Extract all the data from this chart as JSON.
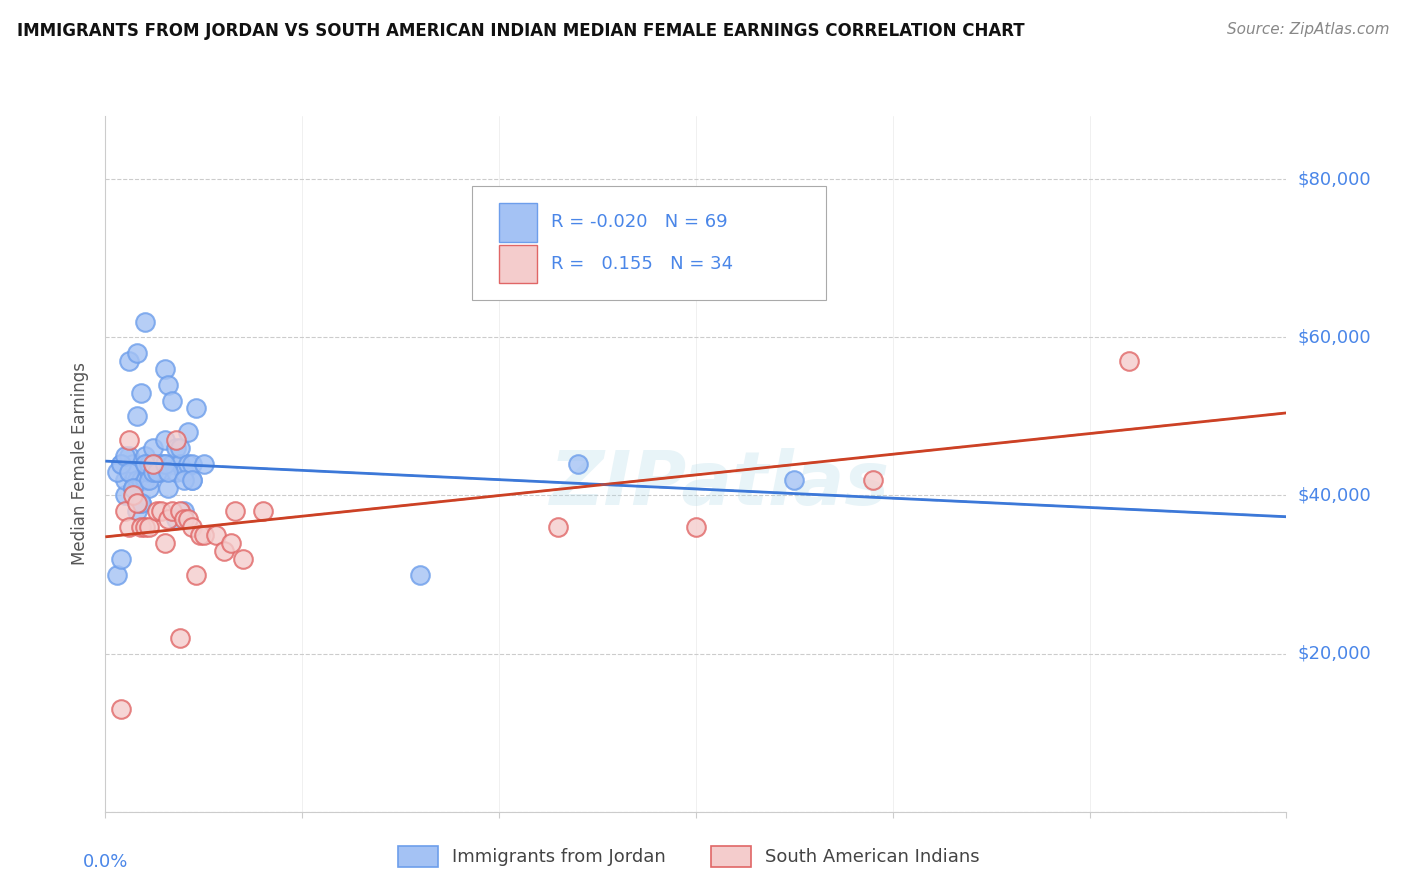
{
  "title": "IMMIGRANTS FROM JORDAN VS SOUTH AMERICAN INDIAN MEDIAN FEMALE EARNINGS CORRELATION CHART",
  "source": "Source: ZipAtlas.com",
  "ylabel": "Median Female Earnings",
  "ytick_values": [
    0,
    20000,
    40000,
    60000,
    80000
  ],
  "ytick_right_labels": [
    "",
    "$20,000",
    "$40,000",
    "$60,000",
    "$80,000"
  ],
  "ylim": [
    0,
    88000
  ],
  "xlim": [
    0.0,
    0.3
  ],
  "color_jordan_fill": "#a4c2f4",
  "color_jordan_edge": "#6d9eeb",
  "color_jordan_line": "#3c78d8",
  "color_indian_fill": "#f4cccc",
  "color_indian_edge": "#e06666",
  "color_indian_line": "#cc4125",
  "color_axis": "#4a86e8",
  "color_grid": "#cccccc",
  "watermark_text": "ZIPatlas",
  "legend_text_color": "#4a86e8",
  "r1_val": "-0.020",
  "n1_val": "69",
  "r2_val": "0.155",
  "n2_val": "34",
  "jordan_x": [
    0.003,
    0.004,
    0.004,
    0.005,
    0.005,
    0.006,
    0.006,
    0.006,
    0.007,
    0.007,
    0.007,
    0.008,
    0.008,
    0.008,
    0.009,
    0.009,
    0.009,
    0.01,
    0.01,
    0.01,
    0.01,
    0.011,
    0.011,
    0.011,
    0.012,
    0.012,
    0.013,
    0.013,
    0.013,
    0.014,
    0.014,
    0.015,
    0.015,
    0.015,
    0.016,
    0.016,
    0.017,
    0.017,
    0.018,
    0.018,
    0.019,
    0.019,
    0.02,
    0.02,
    0.021,
    0.021,
    0.022,
    0.022,
    0.023,
    0.025,
    0.003,
    0.004,
    0.005,
    0.006,
    0.007,
    0.008,
    0.009,
    0.01,
    0.011,
    0.012,
    0.013,
    0.015,
    0.016,
    0.018,
    0.02,
    0.022,
    0.08,
    0.12,
    0.175
  ],
  "jordan_y": [
    30000,
    32000,
    44000,
    40000,
    42000,
    43000,
    45000,
    57000,
    41000,
    43000,
    44000,
    42000,
    50000,
    58000,
    39000,
    42000,
    53000,
    42000,
    44000,
    45000,
    62000,
    41000,
    43000,
    44000,
    43000,
    46000,
    43000,
    43000,
    44000,
    43000,
    44000,
    44000,
    47000,
    56000,
    41000,
    54000,
    44000,
    52000,
    43000,
    46000,
    44000,
    46000,
    38000,
    43000,
    44000,
    48000,
    42000,
    44000,
    51000,
    44000,
    43000,
    44000,
    45000,
    43000,
    41000,
    38000,
    39000,
    44000,
    42000,
    43000,
    43000,
    44000,
    43000,
    37000,
    42000,
    42000,
    30000,
    44000,
    42000
  ],
  "indian_x": [
    0.004,
    0.005,
    0.006,
    0.007,
    0.008,
    0.009,
    0.01,
    0.011,
    0.012,
    0.013,
    0.014,
    0.015,
    0.016,
    0.017,
    0.018,
    0.019,
    0.02,
    0.021,
    0.022,
    0.023,
    0.024,
    0.025,
    0.028,
    0.03,
    0.033,
    0.035,
    0.006,
    0.019,
    0.115,
    0.15,
    0.195,
    0.26,
    0.032,
    0.04
  ],
  "indian_y": [
    13000,
    38000,
    36000,
    40000,
    39000,
    36000,
    36000,
    36000,
    44000,
    38000,
    38000,
    34000,
    37000,
    38000,
    47000,
    38000,
    37000,
    37000,
    36000,
    30000,
    35000,
    35000,
    35000,
    33000,
    38000,
    32000,
    47000,
    22000,
    36000,
    36000,
    42000,
    57000,
    34000,
    38000
  ]
}
